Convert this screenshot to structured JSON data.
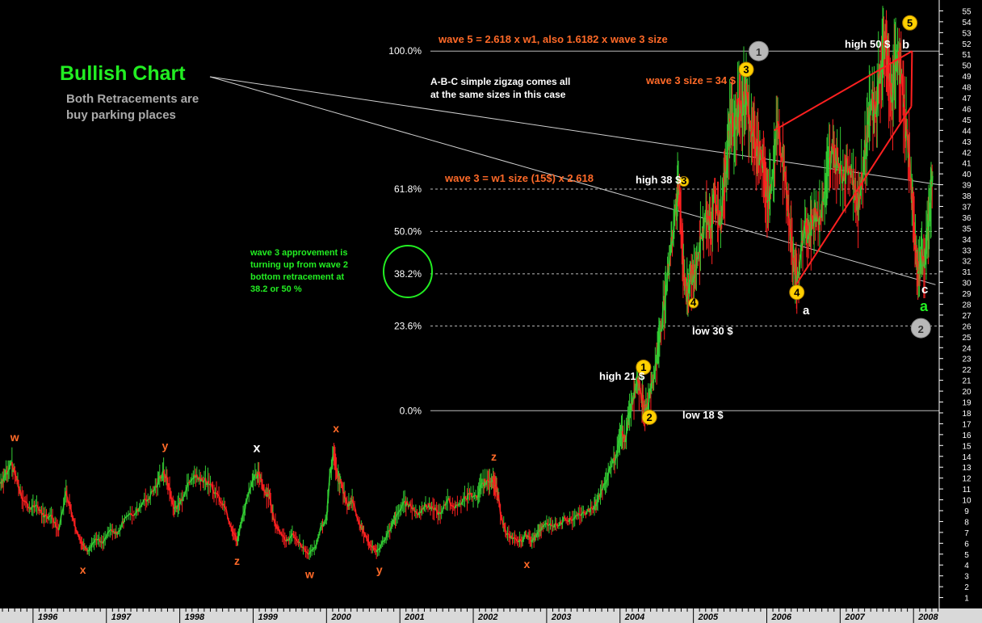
{
  "chart_data": {
    "type": "line",
    "title": "Bullish Chart",
    "subtitle": "Both Retracements are buy parking places",
    "colors": {
      "background": "#000000",
      "up": "#33cc33",
      "down": "#ff2020",
      "title": "#22ee22",
      "subtitle": "#aaaaaa",
      "orange": "#ff6a28",
      "yellow": "#ffd000",
      "white": "#ffffff",
      "gray_circle": "#b8b8b8",
      "channel": "#ff2020",
      "axis_panel": "#d9d9d9"
    },
    "y_axis": {
      "min": 0,
      "max": 56,
      "ticks": [
        1,
        2,
        3,
        4,
        5,
        6,
        7,
        8,
        9,
        10,
        11,
        12,
        13,
        14,
        15,
        16,
        17,
        18,
        19,
        20,
        21,
        22,
        23,
        24,
        25,
        26,
        27,
        28,
        29,
        30,
        31,
        32,
        33,
        34,
        35,
        36,
        37,
        38,
        39,
        40,
        41,
        42,
        43,
        44,
        45,
        46,
        47,
        48,
        49,
        50,
        51,
        52,
        53,
        54,
        55
      ]
    },
    "x_axis": {
      "start": "1995.55",
      "end": "2008.35",
      "years": [
        "1996",
        "1997",
        "1998",
        "1999",
        "2000",
        "2001",
        "2002",
        "2003",
        "2004",
        "2005",
        "2006",
        "2007",
        "2008"
      ]
    },
    "series": [
      {
        "values": [
          [
            1995.55,
            11.5
          ],
          [
            1995.62,
            12.3
          ],
          [
            1995.7,
            13.4
          ],
          [
            1995.78,
            11.8
          ],
          [
            1995.85,
            10.2
          ],
          [
            1995.95,
            9.3
          ],
          [
            1996.05,
            9.5
          ],
          [
            1996.15,
            8.4
          ],
          [
            1996.25,
            8.6
          ],
          [
            1996.35,
            7.2
          ],
          [
            1996.45,
            10.8
          ],
          [
            1996.52,
            9.0
          ],
          [
            1996.6,
            7.0
          ],
          [
            1996.68,
            5.8
          ],
          [
            1996.75,
            5.3
          ],
          [
            1996.85,
            6.4
          ],
          [
            1996.95,
            6.0
          ],
          [
            1997.05,
            7.2
          ],
          [
            1997.15,
            6.8
          ],
          [
            1997.25,
            8.3
          ],
          [
            1997.4,
            8.8
          ],
          [
            1997.5,
            9.8
          ],
          [
            1997.6,
            10.4
          ],
          [
            1997.7,
            11.5
          ],
          [
            1997.78,
            12.6
          ],
          [
            1997.85,
            11.2
          ],
          [
            1997.92,
            9.2
          ],
          [
            1998.0,
            9.6
          ],
          [
            1998.1,
            11.2
          ],
          [
            1998.2,
            12.3
          ],
          [
            1998.3,
            12.0
          ],
          [
            1998.4,
            11.4
          ],
          [
            1998.5,
            10.6
          ],
          [
            1998.6,
            9.6
          ],
          [
            1998.7,
            7.5
          ],
          [
            1998.78,
            6.2
          ],
          [
            1998.85,
            8.2
          ],
          [
            1998.93,
            10.5
          ],
          [
            1999.0,
            11.8
          ],
          [
            1999.08,
            12.3
          ],
          [
            1999.15,
            10.8
          ],
          [
            1999.22,
            10.5
          ],
          [
            1999.28,
            8.3
          ],
          [
            1999.35,
            7.2
          ],
          [
            1999.45,
            6.2
          ],
          [
            1999.55,
            6.8
          ],
          [
            1999.65,
            5.8
          ],
          [
            1999.75,
            5.0
          ],
          [
            1999.85,
            5.6
          ],
          [
            1999.92,
            7.5
          ],
          [
            2000.0,
            8.3
          ],
          [
            2000.05,
            12.5
          ],
          [
            2000.1,
            14.2
          ],
          [
            2000.15,
            12.0
          ],
          [
            2000.2,
            11.5
          ],
          [
            2000.28,
            9.5
          ],
          [
            2000.35,
            10.0
          ],
          [
            2000.45,
            7.8
          ],
          [
            2000.52,
            6.8
          ],
          [
            2000.6,
            5.8
          ],
          [
            2000.68,
            5.2
          ],
          [
            2000.78,
            6.2
          ],
          [
            2000.88,
            7.5
          ],
          [
            2000.95,
            8.5
          ],
          [
            2001.05,
            9.8
          ],
          [
            2001.15,
            9.4
          ],
          [
            2001.25,
            8.6
          ],
          [
            2001.35,
            9.6
          ],
          [
            2001.45,
            9.2
          ],
          [
            2001.55,
            8.7
          ],
          [
            2001.65,
            10.0
          ],
          [
            2001.75,
            9.2
          ],
          [
            2001.85,
            9.8
          ],
          [
            2001.95,
            10.5
          ],
          [
            2002.05,
            10.2
          ],
          [
            2002.12,
            11.5
          ],
          [
            2002.2,
            11.8
          ],
          [
            2002.27,
            12.0
          ],
          [
            2002.32,
            11.0
          ],
          [
            2002.38,
            8.5
          ],
          [
            2002.45,
            6.8
          ],
          [
            2002.55,
            6.5
          ],
          [
            2002.65,
            6.2
          ],
          [
            2002.72,
            6.8
          ],
          [
            2002.8,
            6.2
          ],
          [
            2002.88,
            7.0
          ],
          [
            2002.95,
            7.5
          ],
          [
            2003.05,
            7.8
          ],
          [
            2003.15,
            7.6
          ],
          [
            2003.25,
            8.3
          ],
          [
            2003.35,
            8.1
          ],
          [
            2003.45,
            8.6
          ],
          [
            2003.55,
            8.9
          ],
          [
            2003.65,
            9.4
          ],
          [
            2003.72,
            10.3
          ],
          [
            2003.8,
            11.5
          ],
          [
            2003.88,
            13.0
          ],
          [
            2003.95,
            14.2
          ],
          [
            2004.02,
            16.2
          ],
          [
            2004.08,
            15.6
          ],
          [
            2004.12,
            18.0
          ],
          [
            2004.18,
            19.6
          ],
          [
            2004.24,
            21.2
          ],
          [
            2004.28,
            20.0
          ],
          [
            2004.32,
            18.3
          ],
          [
            2004.36,
            18.2
          ],
          [
            2004.4,
            19.8
          ],
          [
            2004.46,
            21.2
          ],
          [
            2004.52,
            24.2
          ],
          [
            2004.58,
            27.0
          ],
          [
            2004.63,
            29.5
          ],
          [
            2004.68,
            32.5
          ],
          [
            2004.73,
            35.0
          ],
          [
            2004.78,
            37.8
          ],
          [
            2004.81,
            38.6
          ],
          [
            2004.85,
            33.0
          ],
          [
            2004.88,
            30.5
          ],
          [
            2004.92,
            28.5
          ],
          [
            2004.96,
            31.0
          ],
          [
            2005.0,
            30.0
          ],
          [
            2005.05,
            32.5
          ],
          [
            2005.12,
            34.5
          ],
          [
            2005.18,
            36.2
          ],
          [
            2005.24,
            35.0
          ],
          [
            2005.28,
            38.5
          ],
          [
            2005.33,
            36.5
          ],
          [
            2005.38,
            35.8
          ],
          [
            2005.42,
            39.0
          ],
          [
            2005.47,
            42.5
          ],
          [
            2005.52,
            45.5
          ],
          [
            2005.57,
            44.0
          ],
          [
            2005.62,
            47.0
          ],
          [
            2005.67,
            45.5
          ],
          [
            2005.72,
            48.3
          ],
          [
            2005.77,
            44.5
          ],
          [
            2005.83,
            43.5
          ],
          [
            2005.88,
            42.5
          ],
          [
            2005.93,
            41.0
          ],
          [
            2005.98,
            39.0
          ],
          [
            2006.03,
            37.5
          ],
          [
            2006.08,
            40.0
          ],
          [
            2006.14,
            44.0
          ],
          [
            2006.2,
            41.5
          ],
          [
            2006.26,
            39.0
          ],
          [
            2006.3,
            36.0
          ],
          [
            2006.34,
            33.5
          ],
          [
            2006.38,
            31.0
          ],
          [
            2006.41,
            29.9
          ],
          [
            2006.46,
            32.5
          ],
          [
            2006.52,
            35.5
          ],
          [
            2006.57,
            34.0
          ],
          [
            2006.62,
            35.8
          ],
          [
            2006.67,
            36.8
          ],
          [
            2006.73,
            36.0
          ],
          [
            2006.8,
            38.5
          ],
          [
            2006.86,
            41.5
          ],
          [
            2006.92,
            42.0
          ],
          [
            2006.98,
            41.0
          ],
          [
            2007.05,
            40.0
          ],
          [
            2007.12,
            40.5
          ],
          [
            2007.18,
            39.0
          ],
          [
            2007.22,
            37.2
          ],
          [
            2007.27,
            38.2
          ],
          [
            2007.33,
            41.5
          ],
          [
            2007.38,
            44.5
          ],
          [
            2007.43,
            46.8
          ],
          [
            2007.48,
            45.5
          ],
          [
            2007.53,
            48.3
          ],
          [
            2007.58,
            50.8
          ],
          [
            2007.63,
            51.3
          ],
          [
            2007.67,
            48.5
          ],
          [
            2007.71,
            47.5
          ],
          [
            2007.75,
            50.0
          ],
          [
            2007.79,
            51.2
          ],
          [
            2007.83,
            49.0
          ],
          [
            2007.88,
            45.0
          ],
          [
            2007.92,
            43.0
          ],
          [
            2007.96,
            39.5
          ],
          [
            2008.0,
            36.0
          ],
          [
            2008.03,
            33.0
          ],
          [
            2008.06,
            30.8
          ],
          [
            2008.1,
            32.5
          ],
          [
            2008.14,
            31.5
          ],
          [
            2008.18,
            33.8
          ],
          [
            2008.22,
            36.5
          ],
          [
            2008.26,
            39.8
          ]
        ]
      }
    ],
    "fib_levels": [
      {
        "label": "100.0%",
        "y": 51.3,
        "style": "solid"
      },
      {
        "label": "61.8%",
        "y": 38.6,
        "style": "dashed"
      },
      {
        "label": "50.0%",
        "y": 34.7,
        "style": "dashed"
      },
      {
        "label": "38.2%",
        "y": 30.8,
        "style": "dashed"
      },
      {
        "label": "23.6%",
        "y": 26.0,
        "style": "dashed"
      },
      {
        "label": "0.0%",
        "y": 18.2,
        "style": "solid"
      }
    ],
    "trend_lines": [
      {
        "from": [
          1998.38,
          48.0
        ],
        "to": [
          2008.35,
          39.0
        ],
        "color": "#cfcfcf"
      },
      {
        "from": [
          1998.38,
          48.0
        ],
        "to": [
          2008.3,
          29.8
        ],
        "color": "#cfcfcf"
      }
    ],
    "channel_lines": [
      {
        "from": [
          2006.1,
          44.0
        ],
        "to": [
          2007.98,
          51.3
        ]
      },
      {
        "from": [
          2006.41,
          29.9
        ],
        "to": [
          2007.97,
          46.2
        ]
      },
      {
        "from": [
          2007.97,
          46.2
        ],
        "to": [
          2007.98,
          51.3
        ]
      }
    ],
    "annotations": {
      "title_text": "Bullish Chart",
      "subtitle_line1": "Both Retracements are",
      "subtitle_line2": "buy parking places",
      "wave5": "wave 5 = 2.618 x w1, also 1.6182 x wave 3 size",
      "zigzag1": "A-B-C simple zigzag comes all",
      "zigzag2": "at the same sizes in this case",
      "wave3size": "wave 3 size = 34 $",
      "wave3eq": "wave 3 = w1 size (15$) x 2.618",
      "approve1": "wave 3 approvement is",
      "approve2": "turning up from wave 2",
      "approve3": "bottom retracement at",
      "approve4": "38.2 or 50 %",
      "high38": "high 38 $",
      "high50": "high 50 $",
      "high21": "high 21 $",
      "low30": "low 30 $",
      "low18": "low 18 $",
      "b": "b",
      "a_white": "a",
      "c": "c",
      "a_green": "a"
    },
    "wave_letters": [
      {
        "text": "w",
        "x": 1995.75,
        "y": 15.4,
        "color": "#ff6a28"
      },
      {
        "text": "x",
        "x": 1996.68,
        "y": 3.2,
        "color": "#ff6a28"
      },
      {
        "text": "y",
        "x": 1997.8,
        "y": 14.6,
        "color": "#ff6a28"
      },
      {
        "text": "z",
        "x": 1998.78,
        "y": 4.0,
        "color": "#ff6a28"
      },
      {
        "text": "x",
        "x": 1999.05,
        "y": 14.4,
        "color": "#ffffff"
      },
      {
        "text": "w",
        "x": 1999.77,
        "y": 2.8,
        "color": "#ff6a28"
      },
      {
        "text": "x",
        "x": 2000.13,
        "y": 16.2,
        "color": "#ff6a28"
      },
      {
        "text": "y",
        "x": 2000.72,
        "y": 3.2,
        "color": "#ff6a28"
      },
      {
        "text": "z",
        "x": 2002.28,
        "y": 13.6,
        "color": "#ff6a28"
      },
      {
        "text": "x",
        "x": 2002.73,
        "y": 3.7,
        "color": "#ff6a28"
      }
    ],
    "wave_markers": [
      {
        "label": "1",
        "x": 2004.32,
        "y": 22.2,
        "type": "yellow"
      },
      {
        "label": "2",
        "x": 2004.4,
        "y": 17.6,
        "type": "yellow"
      },
      {
        "label": "3",
        "x": 2004.87,
        "y": 39.3,
        "type": "yellow-small"
      },
      {
        "label": "4",
        "x": 2005.0,
        "y": 28.1,
        "type": "yellow-small"
      },
      {
        "label": "3",
        "x": 2005.72,
        "y": 49.6,
        "type": "yellow"
      },
      {
        "label": "4",
        "x": 2006.41,
        "y": 29.1,
        "type": "yellow"
      },
      {
        "label": "5",
        "x": 2007.95,
        "y": 53.9,
        "type": "yellow"
      },
      {
        "label": "1",
        "x": 2005.89,
        "y": 51.3,
        "type": "gray"
      },
      {
        "label": "2",
        "x": 2008.1,
        "y": 25.8,
        "type": "gray"
      }
    ]
  }
}
